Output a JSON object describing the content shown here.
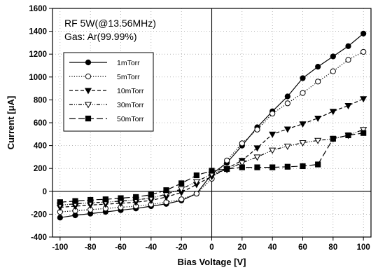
{
  "chart_data": {
    "type": "line",
    "xlabel": "Bias Voltage [V]",
    "ylabel": "Current [μA]",
    "xlim": [
      -105,
      105
    ],
    "ylim": [
      -400,
      1600
    ],
    "xticks": [
      -100,
      -80,
      -60,
      -40,
      -20,
      0,
      20,
      40,
      60,
      80,
      100
    ],
    "yticks": [
      -400,
      -200,
      0,
      200,
      400,
      600,
      800,
      1000,
      1200,
      1400,
      1600
    ],
    "grid": "dotted",
    "legend_position": "upper-left",
    "annotations": [
      "RF 5W(@13.56MHz)",
      "Gas: Ar(99.99%)"
    ],
    "x": [
      -100,
      -90,
      -80,
      -70,
      -60,
      -50,
      -40,
      -30,
      -20,
      -10,
      0,
      10,
      20,
      30,
      40,
      50,
      60,
      70,
      80,
      90,
      100
    ],
    "series": [
      {
        "name": "1mTorr",
        "line_style": "solid",
        "marker": "filled-circle",
        "values": [
          -230,
          -210,
          -195,
          -180,
          -165,
          -150,
          -130,
          -110,
          -80,
          -20,
          150,
          250,
          400,
          560,
          700,
          830,
          990,
          1090,
          1180,
          1270,
          1380
        ]
      },
      {
        "name": "5mTorr",
        "line_style": "dotted",
        "marker": "open-circle",
        "values": [
          -180,
          -170,
          -160,
          -150,
          -140,
          -130,
          -115,
          -95,
          -70,
          -20,
          110,
          270,
          420,
          540,
          680,
          770,
          860,
          960,
          1050,
          1150,
          1220
        ]
      },
      {
        "name": "10mTorr",
        "line_style": "dashed",
        "marker": "filled-triangle-down",
        "values": [
          -140,
          -130,
          -120,
          -112,
          -105,
          -95,
          -80,
          -50,
          -10,
          60,
          130,
          200,
          270,
          380,
          500,
          545,
          590,
          640,
          700,
          750,
          810
        ]
      },
      {
        "name": "30mTorr",
        "line_style": "dash-dot",
        "marker": "open-triangle-down",
        "values": [
          -120,
          -110,
          -100,
          -95,
          -85,
          -75,
          -60,
          -25,
          20,
          85,
          150,
          190,
          250,
          300,
          360,
          395,
          425,
          445,
          460,
          490,
          540
        ]
      },
      {
        "name": "50mTorr",
        "line_style": "long-dash",
        "marker": "filled-square",
        "values": [
          -95,
          -85,
          -75,
          -70,
          -60,
          -50,
          -30,
          10,
          70,
          140,
          180,
          195,
          210,
          210,
          210,
          215,
          220,
          235,
          460,
          490,
          510
        ]
      }
    ]
  }
}
